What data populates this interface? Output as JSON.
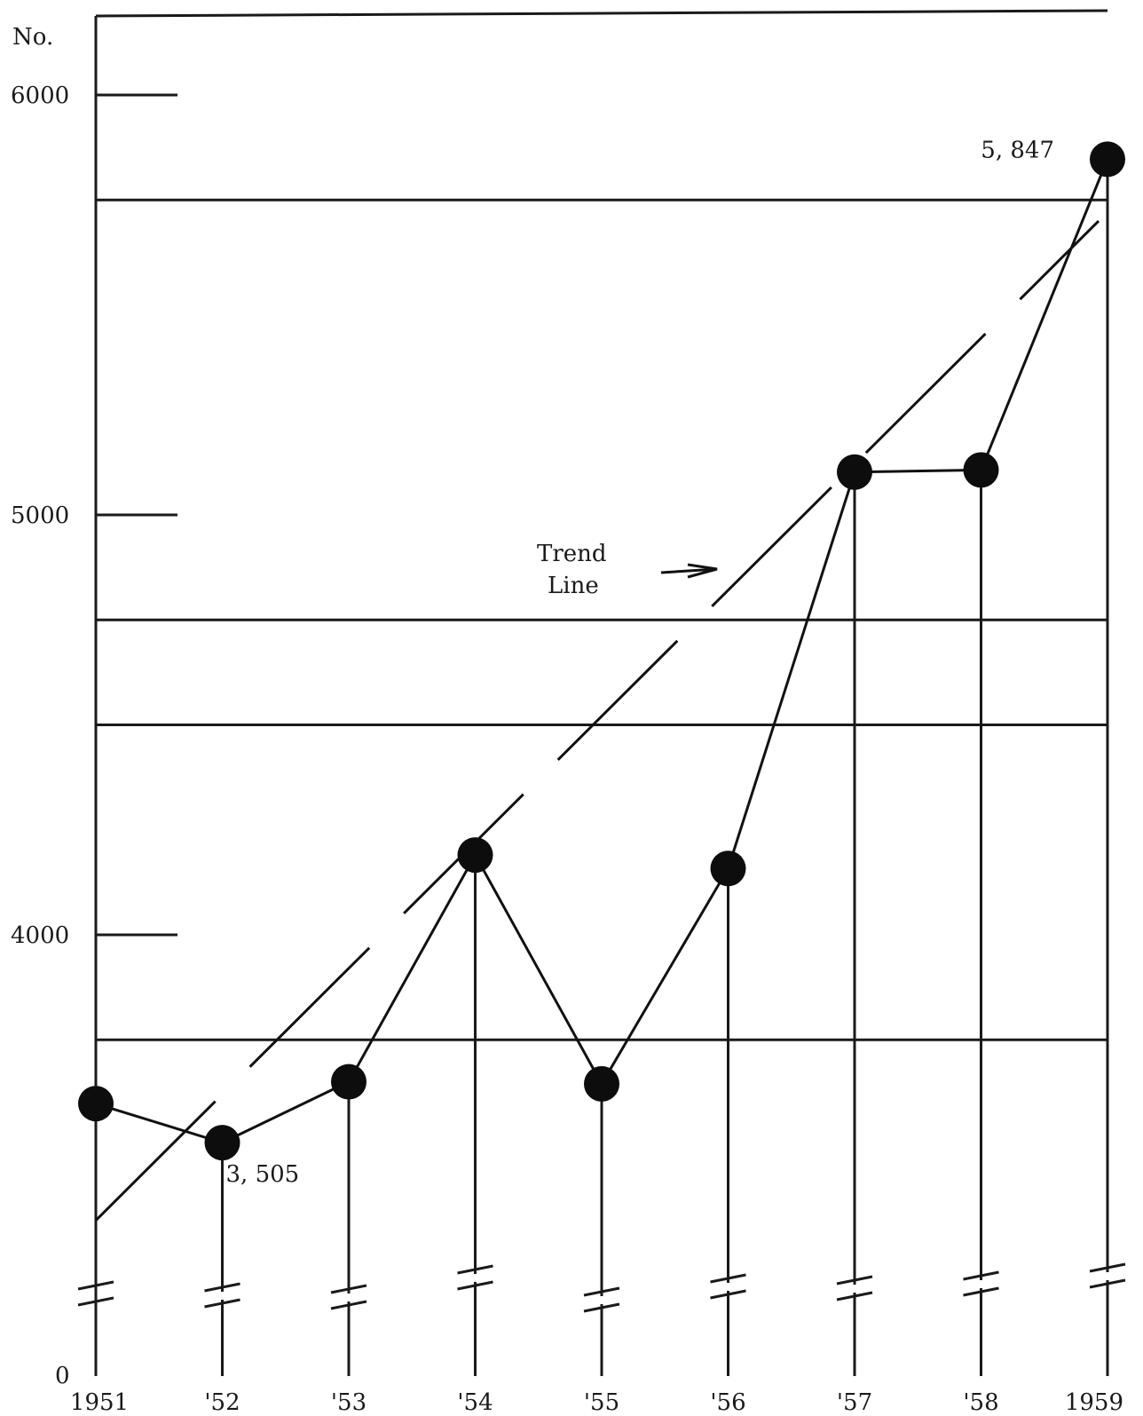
{
  "chart_data": {
    "type": "line",
    "title": "",
    "ylabel": "No.",
    "xlabel": "",
    "categories": [
      "1951",
      "'52",
      "'53",
      "'54",
      "'55",
      "'56",
      "'57",
      "'58",
      "1959"
    ],
    "y_ticks": [
      {
        "value": 6000,
        "label": "6000"
      },
      {
        "value": 5750,
        "label": ""
      },
      {
        "value": 5000,
        "label": "5000"
      },
      {
        "value": 4750,
        "label": ""
      },
      {
        "value": 4500,
        "label": ""
      },
      {
        "value": 4000,
        "label": "4000"
      },
      {
        "value": 3750,
        "label": ""
      }
    ],
    "baseline_label": "0",
    "ylim": [
      3150,
      6250
    ],
    "axis_break": true,
    "series": [
      {
        "values": [
          3598,
          3505,
          3650,
          4190,
          3645,
          4158,
          5102,
          5107,
          5847
        ]
      }
    ],
    "trend_line": {
      "start": 3320,
      "end": 5700,
      "label_line1": "Trend",
      "label_line2": "Line"
    },
    "annotations": [
      {
        "category_index": 1,
        "text": "3, 505"
      },
      {
        "category_index": 8,
        "text": "5, 847"
      }
    ],
    "grid": true
  }
}
